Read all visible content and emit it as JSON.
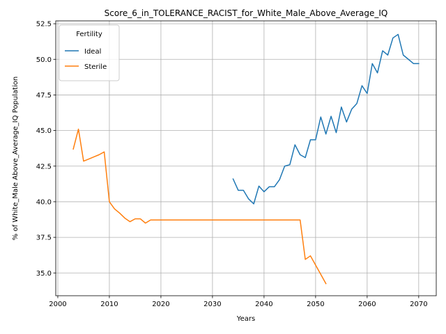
{
  "chart_data": {
    "type": "line",
    "title": "Score_6_in_TOLERANCE_RACIST_for_White_Male_Above_Average_IQ",
    "xlabel": "Years",
    "ylabel": "% of White_Male Above_Average_IQ Population",
    "xlim": [
      1999.6,
      2073.4
    ],
    "ylim": [
      33.4,
      52.7
    ],
    "xticks": [
      2000,
      2010,
      2020,
      2030,
      2040,
      2050,
      2060,
      2070
    ],
    "yticks": [
      35.0,
      37.5,
      40.0,
      42.5,
      45.0,
      47.5,
      50.0,
      52.5
    ],
    "grid": true,
    "legend": {
      "title": "Fertility",
      "position": "top-left"
    },
    "series": [
      {
        "name": "Ideal",
        "color": "#1f77b4",
        "x": [
          2034,
          2035,
          2036,
          2037,
          2038,
          2039,
          2040,
          2041,
          2042,
          2043,
          2044,
          2045,
          2046,
          2047,
          2048,
          2049,
          2050,
          2051,
          2052,
          2053,
          2054,
          2055,
          2056,
          2057,
          2058,
          2059,
          2060,
          2061,
          2062,
          2063,
          2064,
          2065,
          2066,
          2067,
          2068,
          2069,
          2070
        ],
        "y": [
          41.6,
          40.8,
          40.8,
          40.2,
          39.85,
          41.1,
          40.7,
          41.05,
          41.05,
          41.55,
          42.5,
          42.6,
          44.0,
          43.3,
          43.1,
          44.35,
          44.35,
          45.95,
          44.75,
          46.0,
          44.85,
          46.65,
          45.6,
          46.5,
          46.9,
          48.15,
          47.6,
          49.7,
          49.05,
          50.6,
          50.3,
          51.5,
          51.75,
          50.3,
          50.0,
          49.7,
          49.7
        ]
      },
      {
        "name": "Sterile",
        "color": "#ff7f0e",
        "x": [
          2003,
          2004,
          2005,
          2006,
          2007,
          2008,
          2009,
          2010,
          2011,
          2012,
          2013,
          2014,
          2015,
          2016,
          2017,
          2018,
          2019,
          2020,
          2025,
          2030,
          2035,
          2040,
          2045,
          2046,
          2047,
          2048,
          2049,
          2050,
          2051,
          2052
        ],
        "y": [
          43.7,
          45.1,
          42.85,
          43.0,
          43.15,
          43.3,
          43.5,
          40.0,
          39.5,
          39.2,
          38.85,
          38.6,
          38.8,
          38.8,
          38.5,
          38.72,
          38.72,
          38.72,
          38.72,
          38.72,
          38.72,
          38.72,
          38.72,
          38.72,
          38.72,
          35.95,
          36.2,
          35.55,
          34.9,
          34.25
        ]
      }
    ]
  }
}
